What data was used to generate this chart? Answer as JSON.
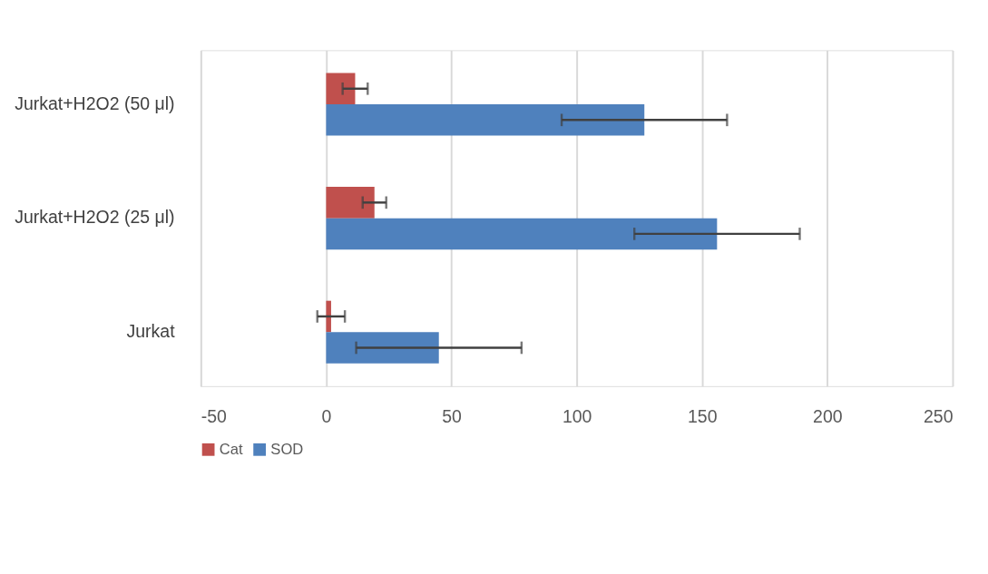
{
  "chart_data": {
    "type": "bar",
    "orientation": "horizontal",
    "categories": [
      "Jurkat+H2O2 (50 μl)",
      "Jurkat+H2O2 (25 μl)",
      "Jurkat"
    ],
    "series": [
      {
        "name": "Cat",
        "color": "#c0504d",
        "values": [
          11.6,
          19.3,
          2
        ],
        "errors": [
          5,
          4.7,
          5.5
        ]
      },
      {
        "name": "SOD",
        "color": "#4f81bd",
        "values": [
          127,
          156,
          45
        ],
        "errors": [
          33,
          33,
          33
        ]
      }
    ],
    "xlim": [
      -50,
      250
    ],
    "xticks": [
      -50,
      0,
      50,
      100,
      150,
      200,
      250
    ],
    "grid": "x",
    "legend": "bottom"
  }
}
